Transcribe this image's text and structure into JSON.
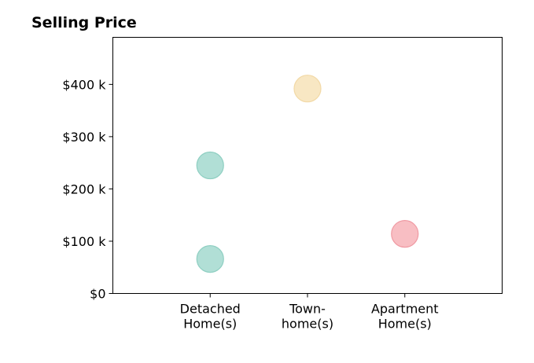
{
  "chart_data": {
    "type": "scatter",
    "title": "Selling Price",
    "xlabel": "",
    "ylabel": "",
    "categories": [
      [
        "Detached",
        "Home(s)"
      ],
      [
        "Town-",
        "home(s)"
      ],
      [
        "Apartment",
        "Home(s)"
      ]
    ],
    "xlim": [
      -1,
      3
    ],
    "ylim": [
      0,
      490000
    ],
    "yticks": [
      0,
      100000,
      200000,
      300000,
      400000
    ],
    "ytick_labels": [
      "$0",
      "$100 k",
      "$200 k",
      "$300 k",
      "$400 k"
    ],
    "grid": false,
    "points": [
      {
        "category": 0,
        "value": 245000,
        "color": "#a8dcd1"
      },
      {
        "category": 0,
        "value": 66000,
        "color": "#a8dcd1"
      },
      {
        "category": 1,
        "value": 392000,
        "color": "#f7e4bd"
      },
      {
        "category": 2,
        "value": 114000,
        "color": "#f7b7bd"
      }
    ],
    "edge_colors": [
      "#8fcfc2",
      "#f2d9a6",
      "#f09aa3"
    ]
  }
}
